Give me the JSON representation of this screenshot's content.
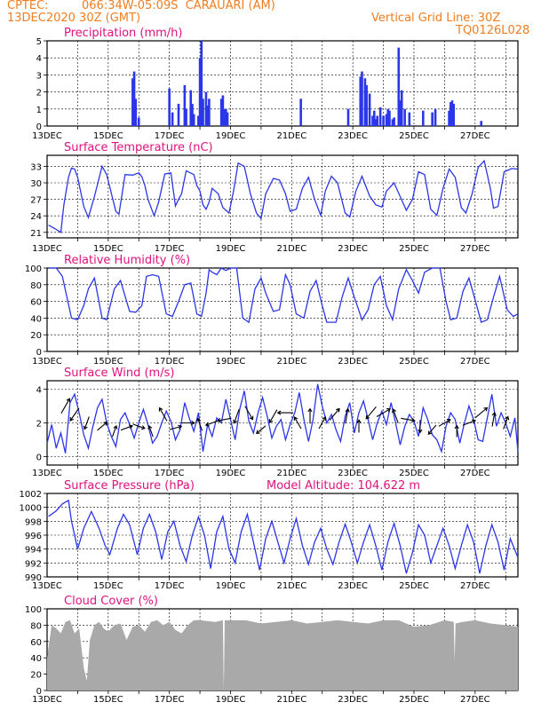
{
  "header": {
    "source": "CPTEC:",
    "location": "066:34W-05:09S  CARAUARI (AM)",
    "run": "13DEC2020 30Z (GMT)",
    "grid_note": "Vertical Grid Line: 30Z",
    "code": "TQ0126L028"
  },
  "colors": {
    "series": "#2b36e8",
    "cloud": "#a9a9a9",
    "title": "#e0107f",
    "header": "#f07d1e"
  },
  "x_ticks": [
    "13DEC",
    "15DEC",
    "17DEC",
    "19DEC",
    "21DEC",
    "23DEC",
    "25DEC",
    "27DEC"
  ],
  "chart_data": [
    {
      "type": "bar",
      "title": "Precipitation (mm/h)",
      "ylim": [
        0,
        5
      ],
      "yticks": [
        "0",
        "1",
        "2",
        "3",
        "4",
        "5"
      ],
      "x_unit": "days since 13DEC 00Z",
      "x": [
        2.8,
        2.85,
        2.9,
        3.0,
        4.0,
        4.1,
        4.3,
        4.5,
        4.55,
        4.7,
        4.75,
        4.8,
        4.95,
        5.0,
        5.05,
        5.1,
        5.2,
        5.25,
        5.3,
        5.7,
        5.75,
        5.8,
        5.85,
        5.9,
        8.3,
        9.85,
        10.25,
        10.3,
        10.4,
        10.45,
        10.55,
        10.65,
        10.7,
        10.75,
        10.8,
        10.9,
        11.0,
        11.1,
        11.15,
        11.2,
        11.3,
        11.35,
        11.5,
        11.55,
        11.6,
        11.7,
        11.85,
        12.3,
        12.6,
        12.7,
        13.15,
        13.2,
        13.25,
        13.3,
        14.2
      ],
      "values": [
        2.8,
        3.2,
        1.6,
        0.5,
        2.2,
        0.8,
        1.3,
        2.4,
        1.0,
        2.1,
        1.3,
        0.7,
        0.6,
        4.0,
        5.0,
        1.6,
        2.0,
        1.2,
        1.6,
        1.6,
        1.8,
        1.0,
        1.0,
        0.8,
        1.6,
        1.0,
        2.9,
        3.2,
        2.8,
        2.4,
        1.9,
        0.6,
        0.9,
        0.4,
        0.6,
        1.1,
        0.6,
        0.7,
        1.0,
        0.9,
        0.4,
        0.5,
        4.6,
        1.5,
        2.1,
        1.0,
        0.8,
        0.9,
        0.8,
        1.0,
        0.9,
        1.4,
        1.5,
        1.3,
        0.3
      ]
    },
    {
      "type": "line",
      "title": "Surface Temperature (nC)",
      "ylim": [
        20,
        35
      ],
      "yticks": [
        "21",
        "24",
        "27",
        "30",
        "33"
      ],
      "x_unit": "days since 13DEC 00Z",
      "x": [
        0.05,
        0.25,
        0.45,
        0.55,
        0.7,
        0.8,
        0.9,
        1.0,
        1.2,
        1.35,
        1.55,
        1.8,
        1.95,
        2.25,
        2.35,
        2.55,
        2.8,
        3.0,
        3.1,
        3.2,
        3.3,
        3.5,
        3.65,
        3.85,
        4.05,
        4.2,
        4.3,
        4.4,
        4.55,
        4.8,
        4.9,
        5.0,
        5.1,
        5.2,
        5.3,
        5.4,
        5.6,
        5.75,
        5.95,
        6.1,
        6.25,
        6.45,
        6.65,
        6.85,
        7.0,
        7.15,
        7.4,
        7.6,
        7.8,
        7.95,
        8.15,
        8.35,
        8.55,
        8.75,
        8.95,
        9.1,
        9.3,
        9.5,
        9.75,
        9.9,
        10.1,
        10.3,
        10.55,
        10.75,
        10.95,
        11.1,
        11.35,
        11.55,
        11.75,
        11.95,
        12.15,
        12.35,
        12.55,
        12.75,
        12.95,
        13.15,
        13.35,
        13.55,
        13.7,
        13.9,
        14.1,
        14.3,
        14.5,
        14.6,
        14.75,
        14.95,
        15.2,
        15.4
      ],
      "values": [
        22.3,
        21.7,
        21.0,
        26.0,
        31.0,
        32.7,
        32.5,
        31.0,
        25.7,
        23.7,
        27.5,
        33.0,
        31.5,
        24.8,
        24.3,
        31.5,
        31.4,
        31.8,
        31.1,
        29.5,
        27.0,
        24.0,
        26.5,
        31.6,
        31.8,
        25.8,
        27.0,
        28.0,
        32.2,
        31.5,
        29.5,
        28.5,
        26.0,
        25.2,
        26.5,
        29.0,
        28.0,
        25.5,
        24.5,
        28.5,
        33.6,
        33.0,
        28.0,
        24.5,
        23.5,
        28.0,
        30.8,
        30.5,
        28.0,
        24.8,
        25.2,
        29.0,
        31.0,
        27.0,
        24.1,
        28.5,
        31.2,
        30.0,
        24.5,
        23.8,
        28.5,
        31.2,
        27.6,
        26.0,
        25.6,
        28.5,
        30.0,
        27.5,
        25.0,
        27.0,
        32.0,
        31.5,
        25.2,
        24.1,
        29.0,
        32.5,
        31.0,
        25.5,
        24.5,
        28.0,
        32.8,
        34.0,
        29.0,
        25.4,
        25.7,
        32.0,
        32.6,
        32.5
      ]
    },
    {
      "type": "line",
      "title": "Relative Humidity (%)",
      "ylim": [
        0,
        100
      ],
      "yticks": [
        "0",
        "20",
        "40",
        "60",
        "80",
        "100"
      ],
      "x_unit": "days since 13DEC 00Z",
      "x": [
        0.05,
        0.3,
        0.5,
        0.8,
        1.0,
        1.2,
        1.35,
        1.55,
        1.8,
        1.95,
        2.2,
        2.4,
        2.7,
        2.9,
        3.1,
        3.25,
        3.45,
        3.65,
        3.9,
        4.1,
        4.3,
        4.5,
        4.7,
        4.9,
        5.05,
        5.2,
        5.3,
        5.4,
        5.55,
        5.7,
        5.85,
        6.0,
        6.2,
        6.4,
        6.6,
        6.8,
        7.0,
        7.15,
        7.4,
        7.6,
        7.8,
        7.95,
        8.15,
        8.4,
        8.6,
        8.8,
        9.0,
        9.15,
        9.45,
        9.65,
        9.85,
        10.05,
        10.3,
        10.5,
        10.7,
        10.9,
        11.1,
        11.3,
        11.5,
        11.75,
        11.95,
        12.15,
        12.35,
        12.6,
        12.85,
        13.05,
        13.2,
        13.4,
        13.6,
        13.8,
        14.0,
        14.2,
        14.4,
        14.6,
        14.8,
        15.05,
        15.25,
        15.4
      ],
      "values": [
        100,
        100,
        90,
        40,
        38,
        55,
        75,
        88,
        40,
        38,
        75,
        85,
        48,
        47,
        55,
        90,
        92,
        90,
        45,
        42,
        60,
        80,
        82,
        45,
        42,
        70,
        98,
        95,
        92,
        100,
        97,
        100,
        100,
        40,
        35,
        75,
        88,
        70,
        48,
        50,
        92,
        80,
        45,
        40,
        72,
        85,
        55,
        35,
        35,
        65,
        88,
        65,
        38,
        50,
        80,
        90,
        55,
        38,
        75,
        98,
        85,
        70,
        95,
        100,
        100,
        60,
        38,
        40,
        72,
        88,
        62,
        35,
        38,
        65,
        90,
        50,
        42,
        45
      ]
    },
    {
      "type": "line",
      "title": "Surface Wind (m/s)",
      "ylim": [
        -0.5,
        4.5
      ],
      "yticks": [
        "0",
        "2",
        "4"
      ],
      "x_unit": "days since 13DEC 00Z",
      "x": [
        0.0,
        0.15,
        0.3,
        0.45,
        0.6,
        0.75,
        0.9,
        1.05,
        1.2,
        1.35,
        1.5,
        1.65,
        1.8,
        1.95,
        2.1,
        2.25,
        2.4,
        2.55,
        2.7,
        2.85,
        3.0,
        3.15,
        3.3,
        3.45,
        3.6,
        3.75,
        3.9,
        4.05,
        4.2,
        4.35,
        4.5,
        4.65,
        4.8,
        4.95,
        5.1,
        5.25,
        5.4,
        5.55,
        5.7,
        5.85,
        6.0,
        6.15,
        6.3,
        6.45,
        6.6,
        6.75,
        6.9,
        7.05,
        7.2,
        7.35,
        7.5,
        7.65,
        7.8,
        7.95,
        8.1,
        8.25,
        8.4,
        8.55,
        8.7,
        8.85,
        9.0,
        9.15,
        9.3,
        9.45,
        9.6,
        9.75,
        9.9,
        10.05,
        10.2,
        10.35,
        10.5,
        10.65,
        10.8,
        10.95,
        11.1,
        11.25,
        11.4,
        11.55,
        11.7,
        11.85,
        12.0,
        12.15,
        12.3,
        12.45,
        12.6,
        12.75,
        12.9,
        13.05,
        13.2,
        13.35,
        13.5,
        13.65,
        13.8,
        13.95,
        14.1,
        14.25,
        14.4,
        14.55,
        14.7,
        14.85,
        15.0,
        15.15,
        15.3,
        15.4
      ],
      "values": [
        0.8,
        1.9,
        0.5,
        1.4,
        0.2,
        3.2,
        3.7,
        2.6,
        1.3,
        0.5,
        1.8,
        2.9,
        3.4,
        2.0,
        1.2,
        0.6,
        2.2,
        2.6,
        1.9,
        1.1,
        2.0,
        2.8,
        1.9,
        0.8,
        1.2,
        2.0,
        2.7,
        2.1,
        1.0,
        1.6,
        3.2,
        2.3,
        1.5,
        2.6,
        0.3,
        1.9,
        1.2,
        2.3,
        2.0,
        3.4,
        2.2,
        1.0,
        2.8,
        3.9,
        2.1,
        1.4,
        2.6,
        3.5,
        2.4,
        1.1,
        1.8,
        2.2,
        1.0,
        1.9,
        2.6,
        3.8,
        2.2,
        0.9,
        2.2,
        4.3,
        3.0,
        2.0,
        2.5,
        1.6,
        0.9,
        2.4,
        3.2,
        1.4,
        2.6,
        3.3,
        2.2,
        1.0,
        2.0,
        2.7,
        1.9,
        3.2,
        2.0,
        0.7,
        1.8,
        2.5,
        2.1,
        1.2,
        2.9,
        2.2,
        1.3,
        1.0,
        0.3,
        1.8,
        2.6,
        2.2,
        0.8,
        2.0,
        3.0,
        2.2,
        1.0,
        0.9,
        2.3,
        3.7,
        1.8,
        2.6,
        2.0,
        1.2,
        2.3,
        0.3
      ],
      "arrows_x": [
        0.6,
        0.9,
        1.3,
        1.8,
        2.2,
        2.6,
        3.0,
        3.4,
        3.8,
        4.2,
        4.6,
        5.0,
        5.4,
        5.8,
        6.2,
        6.6,
        7.0,
        7.4,
        7.8,
        8.2,
        8.6,
        9.0,
        9.4,
        9.8,
        10.2,
        10.6,
        11.0,
        11.4,
        11.8,
        12.2,
        12.6,
        13.0,
        13.4,
        13.8,
        14.2,
        14.6,
        15.0
      ],
      "arrows_speed": [
        3.0,
        2.5,
        2.0,
        1.8,
        1.5,
        1.7,
        1.8,
        1.5,
        2.5,
        1.7,
        2.0,
        1.9,
        2.0,
        2.2,
        2.4,
        2.6,
        1.6,
        2.4,
        2.6,
        2.0,
        2.4,
        2.0,
        2.5,
        2.4,
        1.8,
        2.6,
        2.6,
        2.4,
        2.2,
        1.8,
        1.6,
        2.0,
        1.5,
        2.0,
        2.6,
        2.2,
        2.0
      ],
      "arrows_dir_deg": [
        60,
        235,
        250,
        40,
        70,
        20,
        340,
        110,
        120,
        15,
        0,
        110,
        200,
        190,
        250,
        300,
        220,
        240,
        180,
        120,
        90,
        60,
        50,
        80,
        90,
        230,
        30,
        110,
        350,
        270,
        230,
        30,
        90,
        20,
        40,
        80,
        70
      ]
    },
    {
      "type": "line",
      "title": "Surface Pressure (hPa)",
      "annotation": "Model Altitude: 104.622 m",
      "ylim": [
        990,
        1002
      ],
      "yticks": [
        "990",
        "992",
        "994",
        "996",
        "998",
        "1000",
        "1002"
      ],
      "x_unit": "days since 13DEC 00Z",
      "x": [
        0.05,
        0.3,
        0.5,
        0.7,
        0.8,
        1.0,
        1.2,
        1.45,
        1.7,
        1.9,
        2.05,
        2.3,
        2.5,
        2.7,
        2.95,
        3.15,
        3.35,
        3.55,
        3.75,
        3.95,
        4.15,
        4.35,
        4.55,
        4.75,
        4.95,
        5.15,
        5.35,
        5.55,
        5.75,
        5.95,
        6.15,
        6.35,
        6.55,
        6.75,
        6.95,
        7.15,
        7.35,
        7.55,
        7.75,
        7.95,
        8.15,
        8.35,
        8.55,
        8.75,
        8.95,
        9.15,
        9.35,
        9.55,
        9.75,
        9.95,
        10.15,
        10.35,
        10.55,
        10.75,
        10.95,
        11.15,
        11.35,
        11.55,
        11.75,
        11.95,
        12.15,
        12.35,
        12.55,
        12.75,
        12.95,
        13.15,
        13.35,
        13.55,
        13.75,
        13.95,
        14.15,
        14.35,
        14.55,
        14.75,
        14.95,
        15.15,
        15.4
      ],
      "values": [
        998.7,
        999.5,
        1000.5,
        1001.0,
        998.0,
        994.0,
        997.0,
        999.4,
        997.0,
        994.5,
        993.2,
        997.0,
        999.0,
        997.5,
        993.2,
        997.0,
        999.0,
        996.5,
        992.5,
        996.5,
        998.0,
        994.5,
        992.2,
        996.0,
        998.6,
        996.0,
        991.2,
        996.5,
        998.7,
        994.0,
        992.0,
        996.5,
        999.0,
        995.0,
        991.0,
        995.5,
        998.0,
        995.0,
        992.0,
        995.5,
        998.4,
        994.5,
        991.8,
        995.0,
        997.0,
        994.0,
        991.8,
        995.0,
        997.6,
        995.0,
        992.0,
        995.0,
        997.5,
        994.5,
        991.0,
        995.0,
        997.7,
        994.5,
        990.5,
        993.5,
        997.5,
        996.0,
        992.0,
        994.5,
        997.0,
        994.5,
        991.2,
        994.5,
        997.5,
        995.0,
        990.5,
        994.5,
        997.5,
        995.0,
        991.0,
        995.5,
        992.8
      ]
    },
    {
      "type": "area",
      "title": "Cloud Cover (%)",
      "ylim": [
        0,
        100
      ],
      "yticks": [
        "0",
        "20",
        "40",
        "60",
        "80",
        "100"
      ],
      "x_unit": "days since 13DEC 00Z",
      "x": [
        0.0,
        0.15,
        0.3,
        0.45,
        0.6,
        0.75,
        0.9,
        1.05,
        1.2,
        1.3,
        1.4,
        1.55,
        1.7,
        1.85,
        2.0,
        2.2,
        2.4,
        2.6,
        2.8,
        3.0,
        3.2,
        3.4,
        3.6,
        3.8,
        4.0,
        4.2,
        4.4,
        4.6,
        4.8,
        5.0,
        5.5,
        5.75,
        5.78,
        5.81,
        6.0,
        6.5,
        7.0,
        7.5,
        8.0,
        8.5,
        9.0,
        9.5,
        10.0,
        10.5,
        11.0,
        11.5,
        12.0,
        12.5,
        13.0,
        13.3,
        13.33,
        13.36,
        13.6,
        14.0,
        14.5,
        15.0,
        15.4
      ],
      "values": [
        40,
        80,
        76,
        70,
        84,
        86,
        70,
        76,
        28,
        12,
        62,
        80,
        84,
        76,
        72,
        80,
        82,
        62,
        78,
        80,
        72,
        84,
        86,
        80,
        84,
        74,
        70,
        80,
        86,
        86,
        84,
        86,
        0,
        86,
        86,
        86,
        82,
        84,
        86,
        82,
        84,
        86,
        84,
        82,
        86,
        86,
        78,
        80,
        86,
        84,
        36,
        82,
        84,
        86,
        82,
        80,
        78
      ]
    }
  ]
}
